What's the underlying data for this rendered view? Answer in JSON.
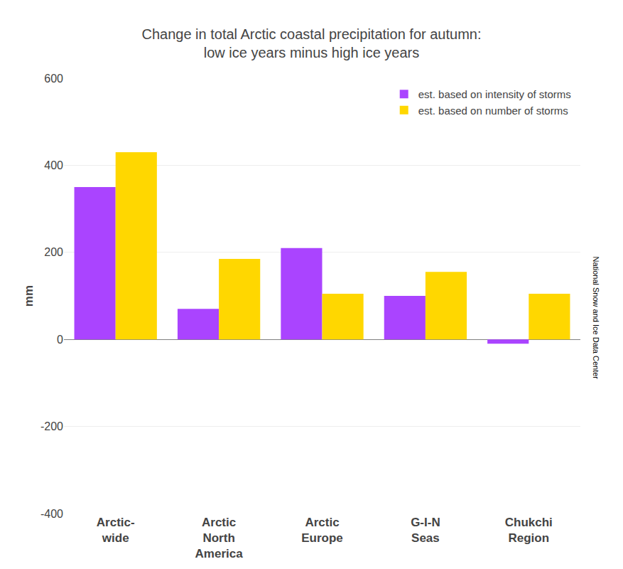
{
  "chart_data": {
    "type": "bar",
    "title": "Change in total Arctic coastal precipitation for autumn:\nlow ice years minus high ice years",
    "ylabel": "mm",
    "categories": [
      "Arctic-\nwide",
      "Arctic\nNorth\nAmerica",
      "Arctic\nEurope",
      "G-I-N\nSeas",
      "Chukchi\nRegion"
    ],
    "series": [
      {
        "name": "est. based on intensity of storms",
        "color": "#AA44FF",
        "values": [
          350,
          70,
          210,
          100,
          -10
        ]
      },
      {
        "name": "est. based on number of storms",
        "color": "#FFD700",
        "values": [
          430,
          185,
          105,
          155,
          105
        ]
      }
    ],
    "ylim": [
      -400,
      600
    ],
    "yticks": [
      -400,
      -200,
      0,
      200,
      400,
      600
    ],
    "grid": true,
    "legend": "upper right",
    "annotations": [
      "National Snow and Ice Data Center"
    ]
  }
}
